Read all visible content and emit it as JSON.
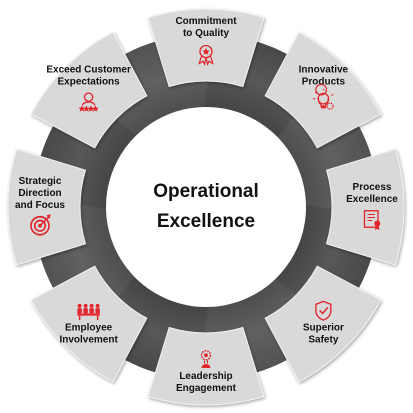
{
  "center_title": {
    "line1": "Operational",
    "line2": "Excellence"
  },
  "segments": [
    {
      "lines": [
        "Commitment",
        "to Quality"
      ],
      "icon": "medal-star-icon"
    },
    {
      "lines": [
        "Innovative",
        "Products"
      ],
      "icon": "lightbulb-gear-icon"
    },
    {
      "lines": [
        "Process",
        "Excellence"
      ],
      "icon": "certificate-document-icon"
    },
    {
      "lines": [
        "Superior",
        "Safety"
      ],
      "icon": "shield-check-icon"
    },
    {
      "lines": [
        "Leadership",
        "Engagement"
      ],
      "icon": "leader-person-icon"
    },
    {
      "lines": [
        "Employee",
        "Involvement"
      ],
      "icon": "team-meeting-icon"
    },
    {
      "lines": [
        "Strategic",
        "Direction",
        "and Focus"
      ],
      "icon": "target-arrow-icon"
    },
    {
      "lines": [
        "Exceed Customer",
        "Expectations"
      ],
      "icon": "customer-rating-icon"
    }
  ],
  "colors": {
    "label_tile": "#d9d9d9",
    "ring_dark": "#4a4a4a",
    "ring_mid": "#6e6e6e",
    "accent": "#e0262b",
    "text": "#111111"
  }
}
